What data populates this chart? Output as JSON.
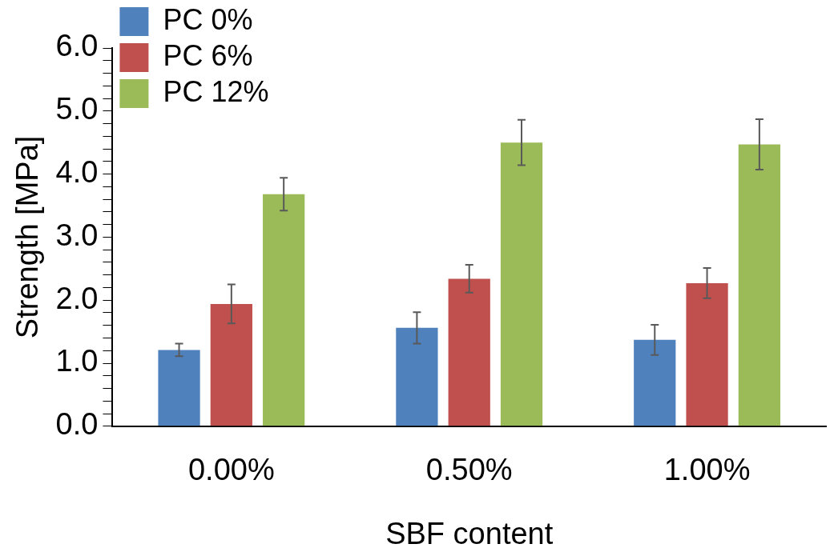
{
  "chart_data": {
    "type": "bar",
    "xlabel": "SBF content",
    "ylabel": "Strength [MPa]",
    "categories": [
      "0.00%",
      "0.50%",
      "1.00%"
    ],
    "series": [
      {
        "name": "PC 0%",
        "color": "#4f81bd",
        "values": [
          1.21,
          1.56,
          1.37
        ],
        "errors": [
          0.1,
          0.25,
          0.24
        ]
      },
      {
        "name": "PC 6%",
        "color": "#c0504d",
        "values": [
          1.94,
          2.34,
          2.27
        ],
        "errors": [
          0.31,
          0.22,
          0.24
        ]
      },
      {
        "name": "PC 12%",
        "color": "#9bbb59",
        "values": [
          3.68,
          4.5,
          4.47
        ],
        "errors": [
          0.26,
          0.36,
          0.4
        ]
      }
    ],
    "ylim": [
      0,
      6
    ],
    "yticks": [
      {
        "value": 0,
        "label": "0.0"
      },
      {
        "value": 0.2,
        "label": null
      },
      {
        "value": 0.4,
        "label": null
      },
      {
        "value": 0.6,
        "label": null
      },
      {
        "value": 0.8,
        "label": null
      },
      {
        "value": 1,
        "label": "1.0"
      },
      {
        "value": 1.2,
        "label": null
      },
      {
        "value": 1.4,
        "label": null
      },
      {
        "value": 1.6,
        "label": null
      },
      {
        "value": 1.8,
        "label": null
      },
      {
        "value": 2,
        "label": "2.0"
      },
      {
        "value": 2.2,
        "label": null
      },
      {
        "value": 2.4,
        "label": null
      },
      {
        "value": 2.6,
        "label": null
      },
      {
        "value": 2.8,
        "label": null
      },
      {
        "value": 3,
        "label": "3.0"
      },
      {
        "value": 3.2,
        "label": null
      },
      {
        "value": 3.4,
        "label": null
      },
      {
        "value": 3.6,
        "label": null
      },
      {
        "value": 3.8,
        "label": null
      },
      {
        "value": 4,
        "label": "4.0"
      },
      {
        "value": 4.2,
        "label": null
      },
      {
        "value": 4.4,
        "label": null
      },
      {
        "value": 4.6,
        "label": null
      },
      {
        "value": 4.8,
        "label": null
      },
      {
        "value": 5,
        "label": "5.0"
      },
      {
        "value": 5.2,
        "label": null
      },
      {
        "value": 5.4,
        "label": null
      },
      {
        "value": 5.6,
        "label": null
      },
      {
        "value": 5.8,
        "label": null
      },
      {
        "value": 6,
        "label": "6.0"
      }
    ],
    "legend": "top left",
    "grid": false
  }
}
